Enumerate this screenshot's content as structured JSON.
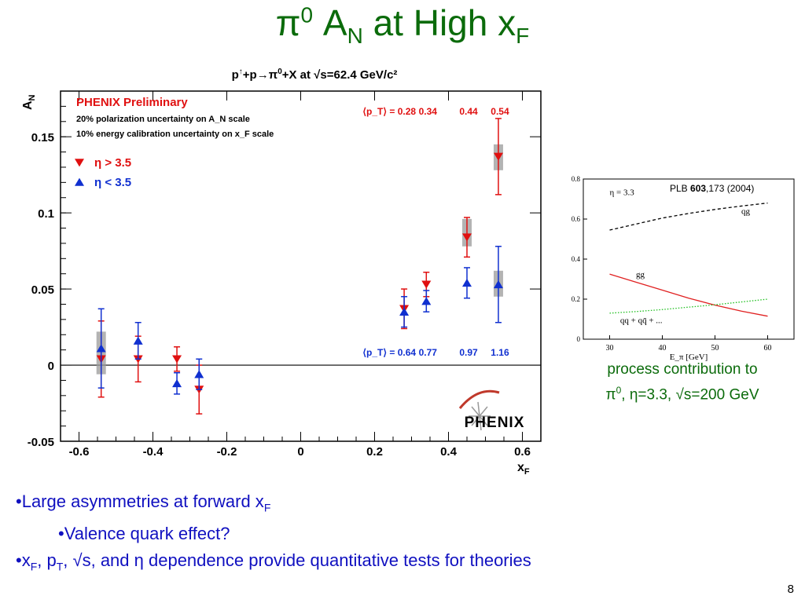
{
  "slide": {
    "title_base": "π",
    "title_sup": "0",
    "title_mid": " A",
    "title_sub_n": "N",
    "title_end": " at High x",
    "title_sub_f": "F",
    "page_number": "8"
  },
  "main_chart_header": {
    "p": "p",
    "arrow": "↑",
    "rest": "+p→π",
    "sup0": "0",
    "tail": "+X at √s=62.4 GeV/c²"
  },
  "chart_data": [
    {
      "type": "scatter",
      "title": "",
      "xlabel": "x_F",
      "ylabel": "A_N",
      "xlim": [
        -0.65,
        0.65
      ],
      "ylim": [
        -0.05,
        0.18
      ],
      "x_ticks": [
        "-0.6",
        "-0.4",
        "-0.2",
        "0",
        "0.2",
        "0.4",
        "0.6"
      ],
      "y_ticks": [
        "-0.05",
        "0",
        "0.05",
        "0.1",
        "0.15"
      ],
      "legend": {
        "heading": "PHENIX Preliminary",
        "lines": [
          "20% polarization uncertainty on A_N scale",
          "10% energy calibration uncertainty on x_F scale"
        ],
        "placement": "top-left"
      },
      "pt_top": {
        "label": "⟨p_T⟩ = 0.28",
        "values": [
          "0.34",
          "0.44",
          "0.54"
        ]
      },
      "pt_bottom": {
        "label": "⟨p_T⟩ = 0.64",
        "values": [
          "0.77",
          "0.97",
          "1.16"
        ]
      },
      "logo": "PHENIX",
      "series": [
        {
          "name": "η > 3.5",
          "color": "#e01010",
          "marker": "triangle-down",
          "points": [
            {
              "x": -0.54,
              "y": 0.004,
              "err": 0.025
            },
            {
              "x": -0.44,
              "y": 0.004,
              "err": 0.015
            },
            {
              "x": -0.335,
              "y": 0.004,
              "err": 0.008
            },
            {
              "x": -0.275,
              "y": -0.016,
              "err": 0.016
            },
            {
              "x": 0.28,
              "y": 0.037,
              "err": 0.013
            },
            {
              "x": 0.34,
              "y": 0.053,
              "err": 0.008
            },
            {
              "x": 0.45,
              "y": 0.084,
              "err": 0.013
            },
            {
              "x": 0.535,
              "y": 0.137,
              "err": 0.025
            }
          ]
        },
        {
          "name": "η < 3.5",
          "color": "#1030d0",
          "marker": "triangle-up",
          "points": [
            {
              "x": -0.54,
              "y": 0.011,
              "err": 0.026
            },
            {
              "x": -0.44,
              "y": 0.016,
              "err": 0.012
            },
            {
              "x": -0.335,
              "y": -0.012,
              "err": 0.007
            },
            {
              "x": -0.275,
              "y": -0.006,
              "err": 0.01
            },
            {
              "x": 0.28,
              "y": 0.035,
              "err": 0.01
            },
            {
              "x": 0.34,
              "y": 0.042,
              "err": 0.007
            },
            {
              "x": 0.45,
              "y": 0.054,
              "err": 0.01
            },
            {
              "x": 0.535,
              "y": 0.053,
              "err": 0.025
            }
          ]
        }
      ],
      "systematic_bands": [
        {
          "x": -0.54,
          "low": -0.006,
          "high": 0.022
        },
        {
          "x": 0.535,
          "low": 0.045,
          "high": 0.062
        },
        {
          "x": 0.535,
          "low": 0.128,
          "high": 0.145
        },
        {
          "x": 0.45,
          "low": 0.078,
          "high": 0.096
        }
      ]
    },
    {
      "type": "line",
      "title": "",
      "xlabel": "E_π [GeV]",
      "ylabel": "",
      "xlim": [
        25,
        65
      ],
      "ylim": [
        0,
        0.8
      ],
      "x_ticks": [
        "30",
        "40",
        "50",
        "60"
      ],
      "y_ticks": [
        "0",
        "0.2",
        "0.4",
        "0.6",
        "0.8"
      ],
      "reference": {
        "pre": "PLB ",
        "bold": "603",
        "post": ",173 (2004)"
      },
      "annotation": "η = 3.3",
      "series": [
        {
          "name": "qg",
          "color": "#000000",
          "style": "dashed",
          "x": [
            30,
            35,
            40,
            45,
            50,
            55,
            60
          ],
          "y": [
            0.545,
            0.575,
            0.605,
            0.628,
            0.648,
            0.665,
            0.68
          ]
        },
        {
          "name": "gg",
          "color": "#e02020",
          "style": "solid",
          "x": [
            30,
            35,
            40,
            45,
            50,
            55,
            60
          ],
          "y": [
            0.325,
            0.285,
            0.245,
            0.205,
            0.17,
            0.14,
            0.115
          ]
        },
        {
          "name": "qq + qq̄ + ...",
          "color": "#20c020",
          "style": "dotted",
          "x": [
            30,
            35,
            40,
            45,
            50,
            55,
            60
          ],
          "y": [
            0.13,
            0.138,
            0.148,
            0.16,
            0.172,
            0.186,
            0.2
          ]
        }
      ]
    }
  ],
  "caption": {
    "line1": "process contribution to",
    "line2_pre": "π",
    "line2_sup": "0",
    "line2_post": ", η=3.3, √s=200 GeV"
  },
  "bullets": {
    "b1_pre": "•Large asymmetries at forward x",
    "b1_sub": "F",
    "b2": "•Valence quark effect?",
    "b3_a": "•x",
    "b3_sub1": "F",
    "b3_b": ", p",
    "b3_sub2": "T",
    "b3_c": ", √s, and η dependence provide quantitative tests for theories"
  }
}
